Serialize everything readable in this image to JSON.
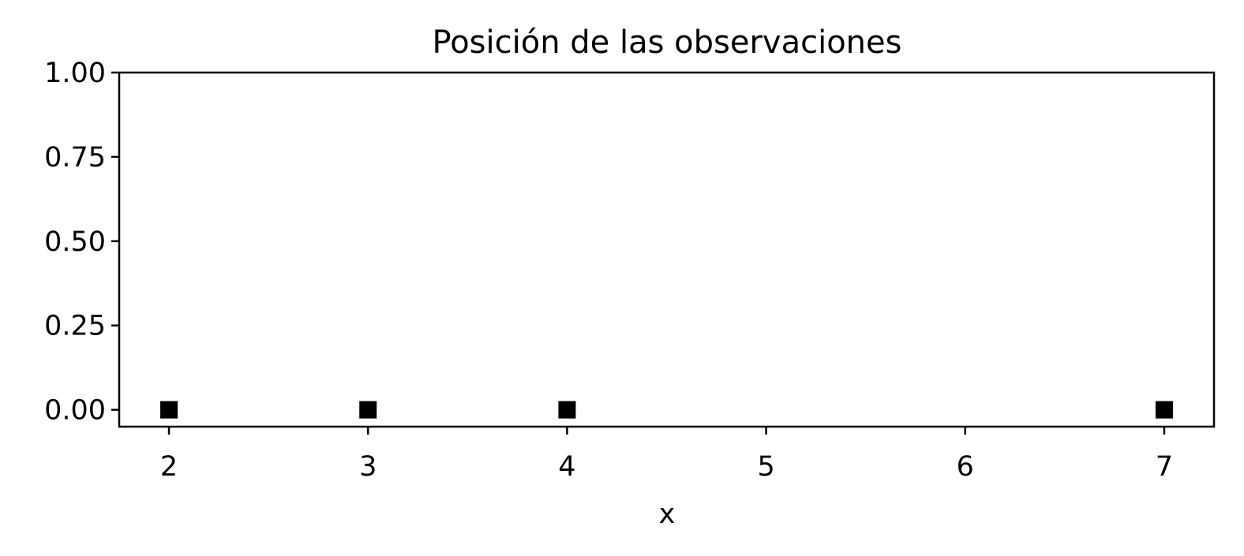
{
  "chart_data": {
    "type": "scatter",
    "title": "Posición de las observaciones",
    "xlabel": "x",
    "ylabel": "",
    "points": [
      {
        "x": 2,
        "y": 0
      },
      {
        "x": 3,
        "y": 0
      },
      {
        "x": 4,
        "y": 0
      },
      {
        "x": 7,
        "y": 0
      }
    ],
    "xlim": [
      1.75,
      7.25
    ],
    "ylim": [
      -0.05,
      1.0
    ],
    "xticks": [
      2,
      3,
      4,
      5,
      6,
      7
    ],
    "xtick_labels": [
      "2",
      "3",
      "4",
      "5",
      "6",
      "7"
    ],
    "yticks": [
      0.0,
      0.25,
      0.5,
      0.75,
      1.0
    ],
    "ytick_labels": [
      "0.00",
      "0.25",
      "0.50",
      "0.75",
      "1.00"
    ],
    "marker": "square",
    "marker_color": "#000000",
    "grid": false,
    "legend": "none"
  }
}
